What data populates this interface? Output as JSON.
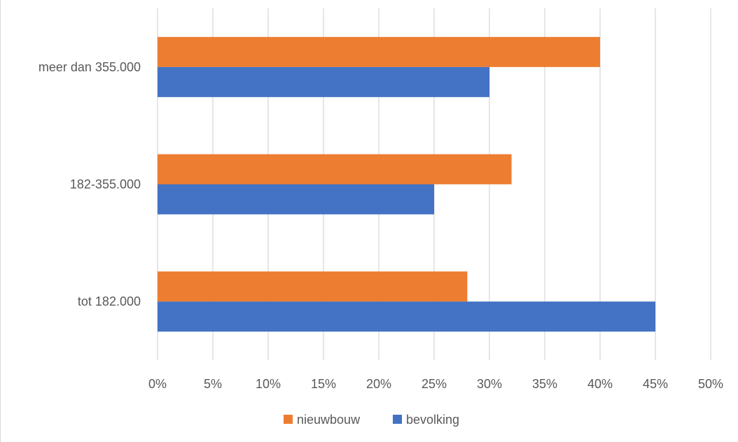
{
  "chart_data": {
    "type": "bar",
    "orientation": "horizontal",
    "categories": [
      "meer dan 355.000",
      "182-355.000",
      "tot 182.000"
    ],
    "series": [
      {
        "name": "nieuwbouw",
        "color": "#ED7D31",
        "values": [
          40,
          32,
          28
        ]
      },
      {
        "name": "bevolking",
        "color": "#4472C4",
        "values": [
          30,
          25,
          45
        ]
      }
    ],
    "xlim": [
      0,
      50
    ],
    "xticks": [
      0,
      5,
      10,
      15,
      20,
      25,
      30,
      35,
      40,
      45,
      50
    ],
    "tick_labels": [
      "0%",
      "5%",
      "10%",
      "15%",
      "20%",
      "25%",
      "30%",
      "35%",
      "40%",
      "45%",
      "50%"
    ],
    "unit": "%",
    "grid": true,
    "legend_position": "bottom"
  }
}
